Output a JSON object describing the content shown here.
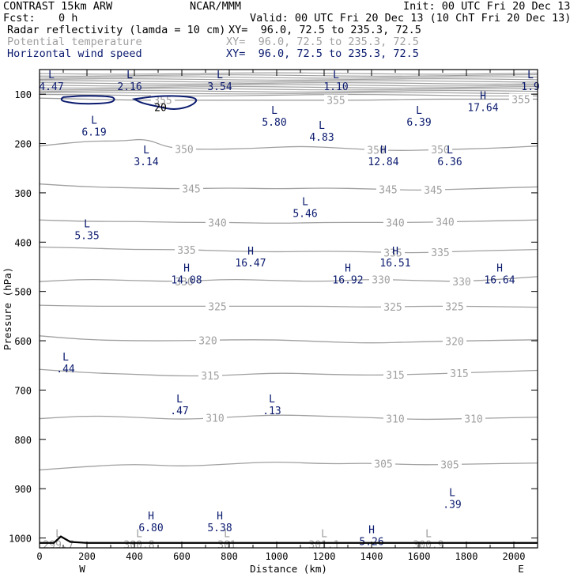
{
  "header": {
    "title": "CONTRAST 15km ARW",
    "org": "NCAR/MMM",
    "init": "Init: 00 UTC Fri 20 Dec 13",
    "fcst_label": "Fcst:",
    "fcst_value": "0 h",
    "valid": "Valid: 00 UTC Fri 20 Dec 13 (10 ChT Fri 20 Dec 13)",
    "fields": [
      {
        "name": "Radar reflectivity (lamda = 10 cm)",
        "xy": "XY=  96.0, 72.5 to 235.3, 72.5",
        "color": "#000000"
      },
      {
        "name": "Potential temperature",
        "xy": "XY=  96.0, 72.5 to 235.3, 72.5",
        "color": "#a0a0a0"
      },
      {
        "name": "Horizontal wind speed",
        "xy": "XY=  96.0, 72.5 to 235.3, 72.5",
        "color": "#0a1a6e"
      }
    ]
  },
  "chart_data": {
    "type": "cross-section",
    "xlabel": "Distance (km)",
    "ylabel": "Pressure (hPa)",
    "xlim": [
      0,
      2100
    ],
    "ylim": [
      1020,
      50
    ],
    "x_ticks": [
      0,
      200,
      400,
      600,
      800,
      1000,
      1200,
      1400,
      1600,
      1800,
      2000
    ],
    "y_ticks": [
      100,
      200,
      300,
      400,
      500,
      600,
      700,
      800,
      900,
      1000
    ],
    "x_endpoints": [
      "W",
      "E"
    ],
    "colors": {
      "theta": "#a0a0a0",
      "wind": "#0a1a6e",
      "ground": "#000000"
    },
    "theta_contours": [
      {
        "value": 305,
        "label_x": [
          1450,
          1730
        ],
        "points": [
          [
            0,
            862
          ],
          [
            200,
            855
          ],
          [
            400,
            850
          ],
          [
            600,
            855
          ],
          [
            800,
            850
          ],
          [
            1000,
            845
          ],
          [
            1200,
            850
          ],
          [
            1400,
            848
          ],
          [
            1600,
            852
          ],
          [
            1800,
            850
          ],
          [
            2100,
            848
          ]
        ]
      },
      {
        "value": 310,
        "label_x": [
          740,
          1500,
          1830
        ],
        "points": [
          [
            0,
            758
          ],
          [
            200,
            752
          ],
          [
            400,
            755
          ],
          [
            600,
            760
          ],
          [
            800,
            755
          ],
          [
            1000,
            750
          ],
          [
            1200,
            753
          ],
          [
            1400,
            756
          ],
          [
            1600,
            760
          ],
          [
            1800,
            758
          ],
          [
            2100,
            755
          ]
        ]
      },
      {
        "value": 315,
        "label_x": [
          720,
          1500,
          1770
        ],
        "points": [
          [
            0,
            658
          ],
          [
            200,
            665
          ],
          [
            400,
            668
          ],
          [
            600,
            672
          ],
          [
            800,
            670
          ],
          [
            1000,
            665
          ],
          [
            1200,
            668
          ],
          [
            1400,
            670
          ],
          [
            1600,
            668
          ],
          [
            1800,
            665
          ],
          [
            2100,
            660
          ]
        ]
      },
      {
        "value": 320,
        "label_x": [
          710,
          1750
        ],
        "points": [
          [
            0,
            590
          ],
          [
            200,
            598
          ],
          [
            400,
            600
          ],
          [
            600,
            600
          ],
          [
            800,
            598
          ],
          [
            1000,
            598
          ],
          [
            1200,
            602
          ],
          [
            1400,
            605
          ],
          [
            1600,
            602
          ],
          [
            1800,
            600
          ],
          [
            2100,
            598
          ]
        ]
      },
      {
        "value": 325,
        "label_x": [
          750,
          1490,
          1750
        ],
        "points": [
          [
            0,
            528
          ],
          [
            200,
            530
          ],
          [
            400,
            530
          ],
          [
            600,
            530
          ],
          [
            800,
            530
          ],
          [
            1000,
            530
          ],
          [
            1200,
            530
          ],
          [
            1400,
            532
          ],
          [
            1600,
            530
          ],
          [
            1800,
            530
          ],
          [
            2100,
            532
          ]
        ]
      },
      {
        "value": 330,
        "label_x": [
          610,
          1440,
          1780
        ],
        "points": [
          [
            0,
            480
          ],
          [
            200,
            475
          ],
          [
            400,
            478
          ],
          [
            600,
            480
          ],
          [
            800,
            475
          ],
          [
            1000,
            478
          ],
          [
            1200,
            480
          ],
          [
            1400,
            475
          ],
          [
            1600,
            478
          ],
          [
            1800,
            480
          ],
          [
            2100,
            470
          ]
        ]
      },
      {
        "value": 335,
        "label_x": [
          620,
          1490,
          1690
        ],
        "points": [
          [
            0,
            410
          ],
          [
            200,
            412
          ],
          [
            400,
            415
          ],
          [
            600,
            415
          ],
          [
            800,
            418
          ],
          [
            1000,
            420
          ],
          [
            1200,
            418
          ],
          [
            1400,
            420
          ],
          [
            1600,
            422
          ],
          [
            1800,
            418
          ],
          [
            2100,
            415
          ]
        ]
      },
      {
        "value": 340,
        "label_x": [
          750,
          1500,
          1710
        ],
        "points": [
          [
            0,
            355
          ],
          [
            200,
            358
          ],
          [
            400,
            358
          ],
          [
            600,
            360
          ],
          [
            800,
            360
          ],
          [
            1000,
            362
          ],
          [
            1200,
            360
          ],
          [
            1400,
            360
          ],
          [
            1600,
            360
          ],
          [
            1800,
            358
          ],
          [
            2100,
            355
          ]
        ]
      },
      {
        "value": 345,
        "label_x": [
          640,
          1470,
          1660
        ],
        "points": [
          [
            0,
            282
          ],
          [
            200,
            288
          ],
          [
            400,
            290
          ],
          [
            600,
            292
          ],
          [
            800,
            290
          ],
          [
            1000,
            292
          ],
          [
            1200,
            290
          ],
          [
            1400,
            292
          ],
          [
            1600,
            295
          ],
          [
            1800,
            292
          ],
          [
            2100,
            288
          ]
        ]
      },
      {
        "value": 350,
        "label_x": [
          610,
          1420,
          1690
        ],
        "points": [
          [
            0,
            205
          ],
          [
            200,
            195
          ],
          [
            350,
            195
          ],
          [
            450,
            190
          ],
          [
            550,
            210
          ],
          [
            700,
            212
          ],
          [
            900,
            210
          ],
          [
            1100,
            205
          ],
          [
            1300,
            210
          ],
          [
            1500,
            215
          ],
          [
            1700,
            212
          ],
          [
            1900,
            210
          ],
          [
            2100,
            205
          ]
        ]
      },
      {
        "value": 355,
        "label_x": [
          520,
          1250,
          2030
        ],
        "points": [
          [
            0,
            108
          ],
          [
            200,
            110
          ],
          [
            400,
            112
          ],
          [
            600,
            112
          ],
          [
            800,
            112
          ],
          [
            1000,
            112
          ],
          [
            1200,
            112
          ],
          [
            1400,
            112
          ],
          [
            1600,
            110
          ],
          [
            1800,
            110
          ],
          [
            2100,
            110
          ]
        ]
      }
    ],
    "upper_theta_levels": [
      58,
      62,
      66,
      70,
      74,
      78,
      82,
      86,
      90,
      94,
      98,
      102
    ],
    "surface_theta_labels": [
      {
        "text": "299.7",
        "x": 80
      },
      {
        "text": "300.8",
        "x": 420
      },
      {
        "text": "301",
        "x": 790
      },
      {
        "text": "301.1",
        "x": 1200
      },
      {
        "text": "300.9",
        "x": 1640
      }
    ],
    "wind_extrema": [
      {
        "type": "L",
        "value": "4.47",
        "x": 50,
        "p": 68
      },
      {
        "type": "L",
        "value": "2.16",
        "x": 380,
        "p": 68
      },
      {
        "type": "L",
        "value": "3.54",
        "x": 760,
        "p": 68
      },
      {
        "type": "L",
        "value": "1.10",
        "x": 1250,
        "p": 68
      },
      {
        "type": "L",
        "value": "1.9",
        "x": 2070,
        "p": 68
      },
      {
        "type": "H",
        "value": "17.64",
        "x": 1870,
        "p": 110
      },
      {
        "type": "L",
        "value": "6.19",
        "x": 230,
        "p": 160
      },
      {
        "type": "L",
        "value": "5.80",
        "x": 990,
        "p": 140
      },
      {
        "type": "L",
        "value": "4.83",
        "x": 1190,
        "p": 170
      },
      {
        "type": "L",
        "value": "6.39",
        "x": 1600,
        "p": 140
      },
      {
        "type": "L",
        "value": "3.14",
        "x": 450,
        "p": 220
      },
      {
        "type": "H",
        "value": "12.84",
        "x": 1450,
        "p": 220
      },
      {
        "type": "L",
        "value": "6.36",
        "x": 1730,
        "p": 220
      },
      {
        "type": "L",
        "value": "5.46",
        "x": 1120,
        "p": 325
      },
      {
        "type": "L",
        "value": "5.35",
        "x": 200,
        "p": 370
      },
      {
        "type": "H",
        "value": "16.47",
        "x": 890,
        "p": 425
      },
      {
        "type": "H",
        "value": "16.51",
        "x": 1500,
        "p": 425
      },
      {
        "type": "H",
        "value": "14.08",
        "x": 620,
        "p": 460
      },
      {
        "type": "H",
        "value": "16.92",
        "x": 1300,
        "p": 460
      },
      {
        "type": "H",
        "value": "16.64",
        "x": 1940,
        "p": 460
      },
      {
        "type": "L",
        "value": ".44",
        "x": 110,
        "p": 640
      },
      {
        "type": "L",
        "value": ".47",
        "x": 590,
        "p": 725
      },
      {
        "type": "L",
        "value": ".13",
        "x": 980,
        "p": 725
      },
      {
        "type": "L",
        "value": ".39",
        "x": 1740,
        "p": 915
      },
      {
        "type": "H",
        "value": "6.80",
        "x": 470,
        "p": 962
      },
      {
        "type": "H",
        "value": "5.38",
        "x": 760,
        "p": 962
      },
      {
        "type": "H",
        "value": "5.26",
        "x": 1400,
        "p": 990
      }
    ],
    "reflectivity_contours": [
      {
        "value": "",
        "points": [
          [
            100,
            106
          ],
          [
            180,
            103
          ],
          [
            300,
            104
          ],
          [
            320,
            110
          ],
          [
            300,
            118
          ],
          [
            180,
            120
          ],
          [
            100,
            115
          ],
          [
            90,
            110
          ]
        ]
      },
      {
        "value": "20",
        "points": [
          [
            400,
            110
          ],
          [
            500,
            103
          ],
          [
            620,
            104
          ],
          [
            670,
            110
          ],
          [
            640,
            124
          ],
          [
            570,
            132
          ],
          [
            500,
            125
          ],
          [
            430,
            118
          ]
        ]
      }
    ],
    "ground": [
      [
        0,
        1010
      ],
      [
        60,
        1010
      ],
      [
        90,
        997
      ],
      [
        130,
        1008
      ],
      [
        200,
        1010
      ],
      [
        2100,
        1010
      ]
    ]
  }
}
